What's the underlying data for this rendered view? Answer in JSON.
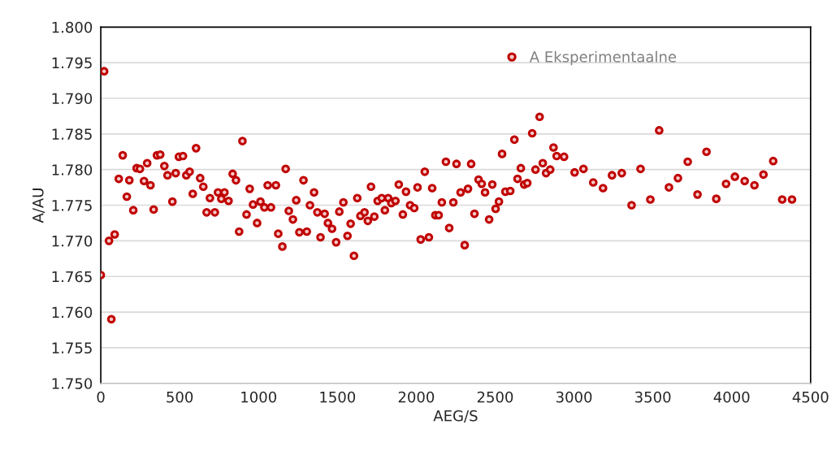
{
  "chart_data": {
    "type": "scatter",
    "xlabel": "AEG/S",
    "ylabel": "A/AU",
    "x": [
      0,
      21,
      52,
      67,
      88,
      114,
      139,
      165,
      181,
      206,
      227,
      248,
      274,
      294,
      315,
      335,
      356,
      377,
      403,
      423,
      454,
      475,
      495,
      521,
      542,
      563,
      583,
      604,
      630,
      650,
      671,
      692,
      723,
      743,
      764,
      784,
      810,
      836,
      857,
      877,
      898,
      924,
      944,
      965,
      991,
      1012,
      1037,
      1058,
      1079,
      1110,
      1125,
      1151,
      1172,
      1192,
      1218,
      1239,
      1259,
      1285,
      1306,
      1326,
      1352,
      1373,
      1393,
      1419,
      1440,
      1466,
      1492,
      1512,
      1538,
      1564,
      1584,
      1605,
      1626,
      1646,
      1672,
      1693,
      1713,
      1734,
      1755,
      1781,
      1801,
      1822,
      1842,
      1868,
      1889,
      1915,
      1935,
      1961,
      1987,
      2008,
      2028,
      2054,
      2080,
      2101,
      2121,
      2142,
      2162,
      2188,
      2209,
      2235,
      2255,
      2281,
      2307,
      2328,
      2348,
      2369,
      2395,
      2415,
      2436,
      2462,
      2482,
      2503,
      2524,
      2544,
      2565,
      2596,
      2622,
      2642,
      2663,
      2684,
      2704,
      2735,
      2756,
      2782,
      2802,
      2823,
      2849,
      2870,
      2890,
      2937,
      3004,
      3060,
      3122,
      3184,
      3241,
      3303,
      3365,
      3422,
      3484,
      3540,
      3602,
      3659,
      3721,
      3783,
      3840,
      3902,
      3964,
      4020,
      4082,
      4144,
      4201,
      4263,
      4320,
      4382
    ],
    "series": [
      {
        "name": "A Eksperimentaalne",
        "color": "#c00000",
        "values": [
          1.7652,
          1.7938,
          1.77,
          1.759,
          1.7709,
          1.7787,
          1.782,
          1.7762,
          1.7785,
          1.7743,
          1.7802,
          1.7801,
          1.7784,
          1.7809,
          1.7778,
          1.7744,
          1.782,
          1.7821,
          1.7805,
          1.7792,
          1.7755,
          1.7795,
          1.7818,
          1.7819,
          1.7792,
          1.7797,
          1.7766,
          1.783,
          1.7788,
          1.7776,
          1.774,
          1.776,
          1.774,
          1.7768,
          1.7759,
          1.7768,
          1.7756,
          1.7794,
          1.7785,
          1.7713,
          1.784,
          1.7737,
          1.7773,
          1.7751,
          1.7725,
          1.7755,
          1.7747,
          1.7778,
          1.7747,
          1.7778,
          1.771,
          1.7692,
          1.7801,
          1.7742,
          1.773,
          1.7757,
          1.7712,
          1.7785,
          1.7713,
          1.775,
          1.7768,
          1.774,
          1.7705,
          1.7738,
          1.7725,
          1.7717,
          1.7698,
          1.7741,
          1.7754,
          1.7707,
          1.7724,
          1.7679,
          1.776,
          1.7735,
          1.774,
          1.7728,
          1.7776,
          1.7734,
          1.7756,
          1.776,
          1.7743,
          1.776,
          1.7753,
          1.7756,
          1.7779,
          1.7737,
          1.7769,
          1.775,
          1.7746,
          1.7775,
          1.7702,
          1.7797,
          1.7705,
          1.7774,
          1.7736,
          1.7736,
          1.7754,
          1.7811,
          1.7718,
          1.7754,
          1.7808,
          1.7768,
          1.7694,
          1.7773,
          1.7808,
          1.7738,
          1.7786,
          1.778,
          1.7768,
          1.773,
          1.7779,
          1.7745,
          1.7755,
          1.7822,
          1.7769,
          1.777,
          1.7842,
          1.7787,
          1.7802,
          1.7779,
          1.7781,
          1.7851,
          1.78,
          1.7874,
          1.7809,
          1.7795,
          1.78,
          1.7831,
          1.7819,
          1.7818,
          1.7796,
          1.7801,
          1.7782,
          1.7774,
          1.7792,
          1.7795,
          1.775,
          1.7801,
          1.7758,
          1.7855,
          1.7775,
          1.7788,
          1.7811,
          1.7765,
          1.7825,
          1.7759,
          1.778,
          1.779,
          1.7784,
          1.7778,
          1.7793,
          1.7812,
          1.7758,
          1.7758
        ]
      }
    ],
    "xlim": [
      0,
      4500
    ],
    "xticks": [
      0,
      500,
      1000,
      1500,
      2000,
      2500,
      3000,
      3500,
      4000,
      4500
    ],
    "ylim": [
      1.75,
      1.8
    ],
    "yticks": [
      {
        "value": 1.75,
        "label": "1.750"
      },
      {
        "value": 1.755,
        "label": "1.755"
      },
      {
        "value": 1.76,
        "label": "1.760"
      },
      {
        "value": 1.765,
        "label": "1.765"
      },
      {
        "value": 1.77,
        "label": "1.770"
      },
      {
        "value": 1.775,
        "label": "1.775"
      },
      {
        "value": 1.78,
        "label": "1.780"
      },
      {
        "value": 1.785,
        "label": "1.785"
      },
      {
        "value": 1.79,
        "label": "1.790"
      },
      {
        "value": 1.795,
        "label": "1.795"
      },
      {
        "value": 1.8,
        "label": "1.800"
      }
    ],
    "grid": "y",
    "legend": "top right",
    "marker": "circle"
  }
}
